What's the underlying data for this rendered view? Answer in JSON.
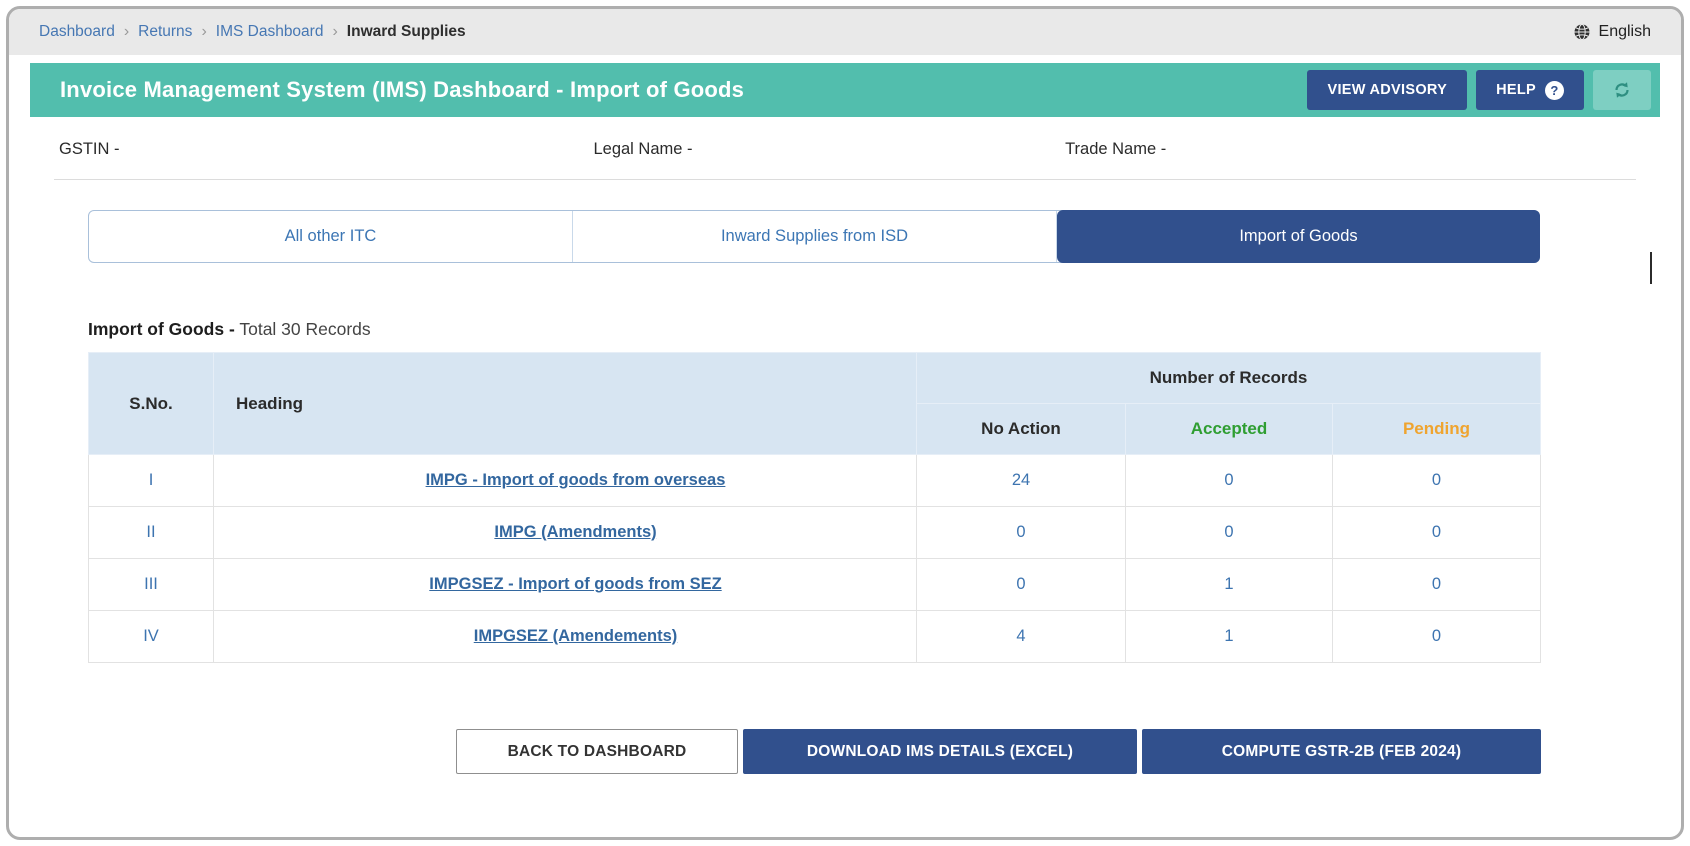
{
  "breadcrumb": {
    "items": [
      "Dashboard",
      "Returns",
      "IMS Dashboard",
      "Inward Supplies"
    ],
    "separator": "›",
    "language": "English"
  },
  "header": {
    "title": "Invoice Management System (IMS) Dashboard - Import of Goods",
    "view_advisory_label": "VIEW ADVISORY",
    "help_label": "HELP",
    "help_icon_glyph": "?"
  },
  "taxpayer": {
    "gstin_label": "GSTIN -",
    "legal_name_label": "Legal Name -",
    "trade_name_label": "Trade Name -"
  },
  "tabs": [
    {
      "label": "All other ITC",
      "active": false
    },
    {
      "label": "Inward Supplies from ISD",
      "active": false
    },
    {
      "label": "Import of Goods",
      "active": true
    }
  ],
  "section": {
    "label": "Import of Goods -",
    "total_text": "Total 30 Records"
  },
  "table": {
    "columns": {
      "sno": "S.No.",
      "heading": "Heading",
      "group": "Number of Records",
      "no_action": "No Action",
      "accepted": "Accepted",
      "pending": "Pending"
    },
    "rows": [
      {
        "sno": "I",
        "heading": "IMPG - Import of goods from overseas",
        "no_action": "24",
        "accepted": "0",
        "pending": "0"
      },
      {
        "sno": "II",
        "heading": "IMPG (Amendments)",
        "no_action": "0",
        "accepted": "0",
        "pending": "0"
      },
      {
        "sno": "III",
        "heading": "IMPGSEZ - Import of goods from SEZ",
        "no_action": "0",
        "accepted": "1",
        "pending": "0"
      },
      {
        "sno": "IV",
        "heading": "IMPGSEZ (Amendements)",
        "no_action": "4",
        "accepted": "1",
        "pending": "0"
      }
    ]
  },
  "footer_buttons": {
    "back": "BACK TO DASHBOARD",
    "download": "DOWNLOAD IMS DETAILS (EXCEL)",
    "compute": "COMPUTE GSTR-2B (FEB 2024)"
  },
  "colors": {
    "header_teal": "#52BEAD",
    "primary_navy": "#31508D",
    "link_blue": "#3D74B0",
    "accepted_green": "#2F9E32",
    "pending_orange": "#EFA42F",
    "table_header_bg": "#D7E5F2"
  }
}
